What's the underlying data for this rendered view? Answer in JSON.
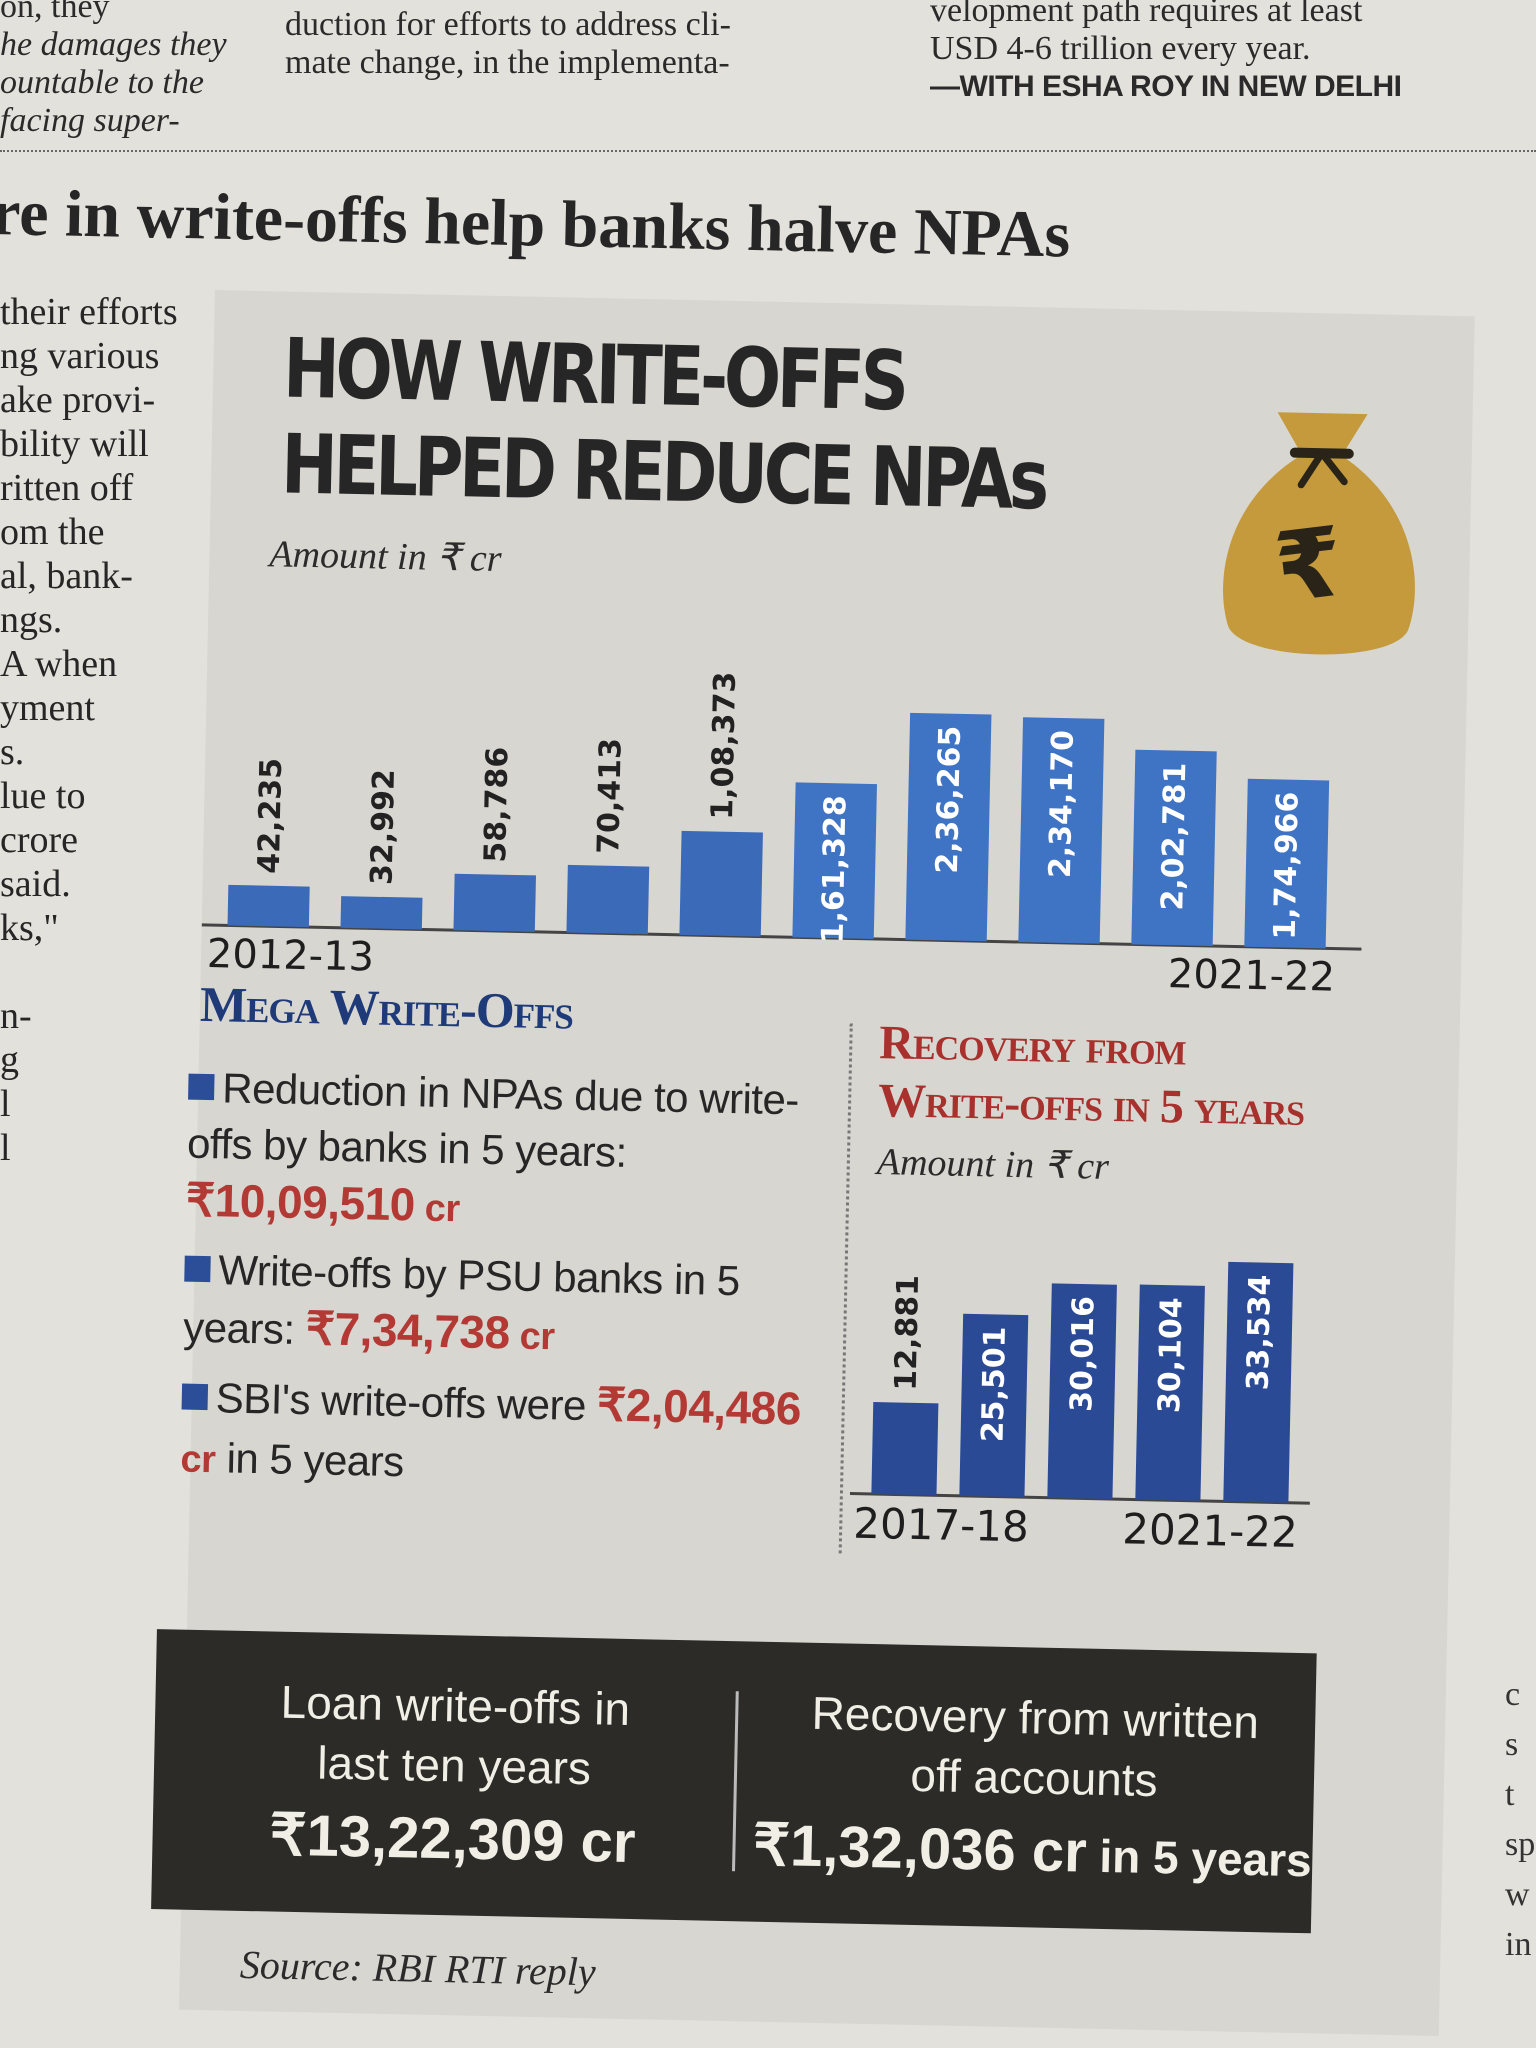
{
  "newspaper": {
    "top_cols": [
      [
        "on, they",
        "he damages they",
        "ountable to the",
        "facing super-"
      ],
      [
        "duction for efforts to address cli-",
        "mate change, in the implementa-"
      ],
      [
        "velopment path requires at least",
        "USD 4-6 trillion every year."
      ]
    ],
    "credit": "—WITH ESHA ROY IN NEW DELHI",
    "headline": "re in write-offs help banks halve NPAs",
    "left_col": [
      "their efforts",
      "ng various",
      "ake provi-",
      "bility will",
      "ritten off",
      "om the",
      "al, bank-",
      "ngs.",
      "A when",
      "yment",
      "s.",
      "lue to",
      "crore",
      "said.",
      "ks,\"",
      "",
      "n-",
      "g",
      "l",
      "l"
    ],
    "right_col": [
      "c",
      "s",
      "t",
      "sp",
      "",
      "w",
      "in"
    ]
  },
  "infographic": {
    "title_line1": "HOW WRITE-OFFS",
    "title_line2": "HELPED REDUCE NPAs",
    "unit": "Amount in ₹ cr",
    "bag_symbol": "₹",
    "mega": {
      "heading": "Mega Write-Offs",
      "fact1_text": "Reduction in NPAs due to write-offs by banks in 5 years: ",
      "fact1_value": "₹10,09,510",
      "fact2_text": "Write-offs by PSU banks in 5 years: ",
      "fact2_value": "₹7,34,738",
      "fact3_text": "SBI's write-offs were ",
      "fact3_value": "₹2,04,486",
      "fact3_suffix": " in 5 years",
      "cr": " cr"
    },
    "recovery": {
      "heading_line1": "Recovery from",
      "heading_line2": "Write-offs in 5 years",
      "unit": "Amount in ₹ cr"
    },
    "band": {
      "left_line1": "Loan write-offs in",
      "left_line2": "last ten years",
      "left_value": "₹13,22,309 cr",
      "right_line1": "Recovery from written",
      "right_line2": "off accounts",
      "right_value": "₹1,32,036 cr",
      "right_suffix": " in 5 years"
    },
    "source": "Source: RBI RTI reply"
  },
  "colors": {
    "light_blue": "#3f73c4",
    "dark_blue": "#2a4a96",
    "accent_red": "#b33a34",
    "band": "#2c2b27"
  },
  "chart_data": [
    {
      "type": "bar",
      "title": "HOW WRITE-OFFS HELPED REDUCE NPAs",
      "unit": "Amount in ₹ cr",
      "categories": [
        "2012-13",
        "",
        "",
        "",
        "",
        "",
        "",
        "",
        "",
        "2021-22"
      ],
      "values": [
        42235,
        32992,
        58786,
        70413,
        108373,
        161328,
        236265,
        234170,
        202781,
        174966
      ],
      "labels": [
        "42,235",
        "32,992",
        "58,786",
        "70,413",
        "1,08,373",
        "1,61,328",
        "2,36,265",
        "2,34,170",
        "2,02,781",
        "1,74,966"
      ],
      "ylim": [
        0,
        250000
      ]
    },
    {
      "type": "bar",
      "title": "Recovery from Write-offs in 5 years",
      "unit": "Amount in ₹ cr",
      "categories": [
        "2017-18",
        "",
        "",
        "",
        "2021-22"
      ],
      "values": [
        12881,
        25501,
        30016,
        30104,
        33534
      ],
      "labels": [
        "12,881",
        "25,501",
        "30,016",
        "30,104",
        "33,534"
      ],
      "ylim": [
        0,
        35000
      ]
    }
  ]
}
